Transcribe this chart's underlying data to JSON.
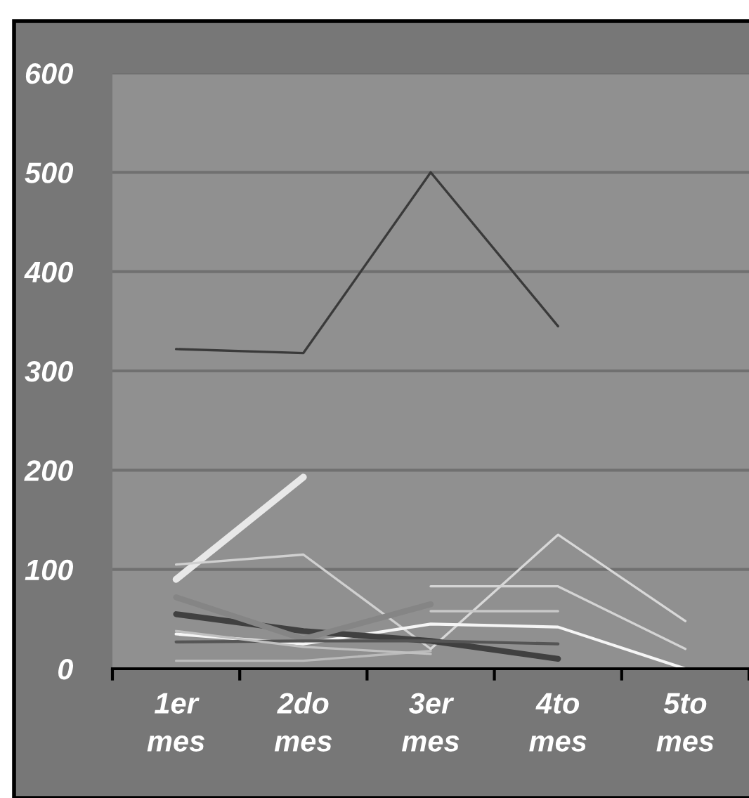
{
  "chart_data": {
    "type": "line",
    "categories": [
      "1er\nmes",
      "2do\nmes",
      "3er\nmes",
      "4to\nmes",
      "5to\nmes"
    ],
    "series": [
      {
        "color": "#3a3a3a",
        "values": [
          322,
          318,
          500,
          345,
          null
        ]
      },
      {
        "color": "#e8e8e8",
        "values": [
          90,
          193,
          null,
          null,
          null
        ]
      },
      {
        "color": "#d0d0d0",
        "values": [
          105,
          115,
          20,
          null,
          null
        ]
      },
      {
        "color": "#d8d8d8",
        "values": [
          null,
          null,
          20,
          135,
          48
        ]
      },
      {
        "color": "#d4d4d4",
        "values": [
          null,
          null,
          83,
          83,
          20
        ]
      },
      {
        "color": "#c8c8c8",
        "values": [
          null,
          null,
          58,
          58,
          null
        ]
      },
      {
        "color": "#f5f5f5",
        "values": [
          35,
          25,
          45,
          42,
          0
        ]
      },
      {
        "color": "#404040",
        "values": [
          55,
          38,
          28,
          10,
          null
        ]
      },
      {
        "color": "#858585",
        "values": [
          72,
          30,
          65,
          null,
          null
        ]
      },
      {
        "color": "#555555",
        "values": [
          27,
          28,
          28,
          25,
          null
        ]
      },
      {
        "color": "#bbbbbb",
        "values": [
          8,
          8,
          18,
          null,
          null
        ]
      },
      {
        "color": "#c0c0c0",
        "values": [
          38,
          22,
          15,
          null,
          null
        ]
      }
    ],
    "ylim": [
      0,
      600
    ],
    "yticks": [
      0,
      100,
      200,
      300,
      400,
      500,
      600
    ],
    "grid": "y",
    "legend": false,
    "marker": "none",
    "line_style": "solid"
  }
}
